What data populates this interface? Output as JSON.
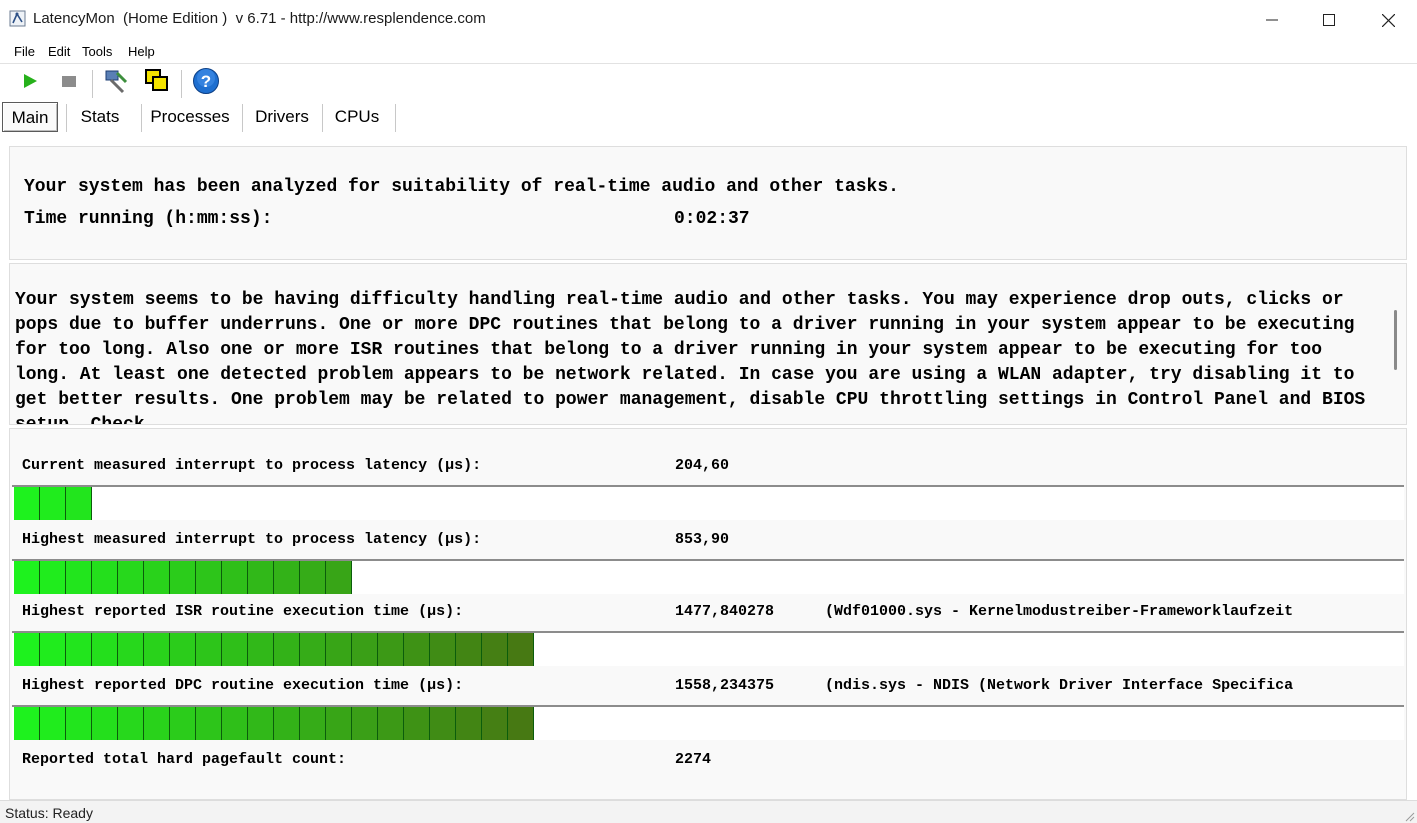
{
  "window": {
    "title": "LatencyMon  (Home Edition )  v 6.71 - http://www.resplendence.com",
    "app_icon": "latencymon-app-icon",
    "controls": [
      "minimize-icon",
      "maximize-icon",
      "close-icon"
    ]
  },
  "menu": {
    "file": "File",
    "edit": "Edit",
    "tools": "Tools",
    "help": "Help"
  },
  "toolbar": {
    "start_icon": "play-icon",
    "stop_icon": "stop-icon",
    "settings_icon": "tools-icon",
    "window_icon": "window-switch-icon",
    "help_icon": "help-icon",
    "start_color": "#27b11b",
    "stop_color": "#8c8c8c",
    "help_color": "#1e6fd0"
  },
  "tabs": [
    "Main",
    "Stats",
    "Processes",
    "Drivers",
    "CPUs"
  ],
  "summary": {
    "title": "Your system has been analyzed for suitability of real-time audio and other tasks.",
    "time_label": "Time running (h:mm:ss):",
    "time_value": "0:02:37"
  },
  "message": "Your system seems to be having difficulty handling real-time audio and other tasks. You may experience drop outs, clicks or pops due to buffer underruns. One or more DPC routines that belong to a driver running in your system appear to be executing for too long. Also one or more ISR routines that belong to a driver running in your system appear to be executing for too long. At least one detected problem appears to be network related. In case you are using a WLAN adapter, try disabling it to get better results. One problem may be related to power management, disable CPU throttling settings in Control Panel and BIOS setup. Check",
  "metrics": {
    "current_latency": {
      "label": "Current measured interrupt to process latency (µs):",
      "value": "204,60",
      "segments": 3
    },
    "highest_latency": {
      "label": "Highest measured interrupt to process latency (µs):",
      "value": "853,90",
      "segments": 13
    },
    "isr": {
      "label": "Highest reported ISR routine execution time (µs):",
      "value": "1477,840278",
      "detail": "(Wdf01000.sys - Kernelmodustreiber-Frameworklaufzeit",
      "segments": 20
    },
    "dpc": {
      "label": "Highest reported DPC routine execution time (µs):",
      "value": "1558,234375",
      "detail": "(ndis.sys - NDIS (Network Driver Interface Specifica",
      "segments": 20
    },
    "pagefault": {
      "label": "Reported total hard pagefault count:",
      "value": "2274"
    }
  },
  "colors": {
    "bar_start": "#1ef21e",
    "bar_end": "#5a3f0e",
    "panel_bg": "#f9f9f9"
  },
  "status": "Status: Ready"
}
